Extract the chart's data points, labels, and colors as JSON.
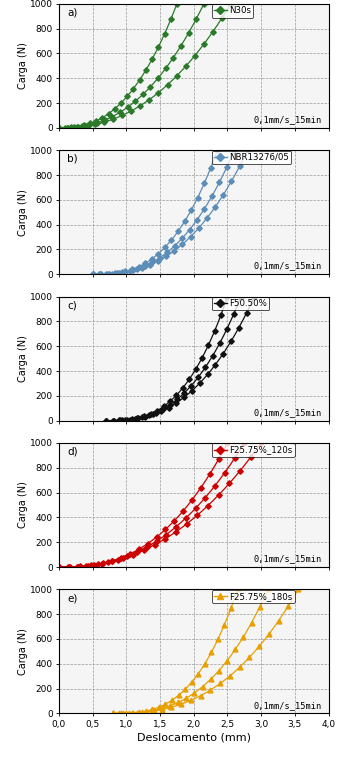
{
  "subplots": [
    {
      "label": "a)",
      "legend_label": "N30s",
      "color": "#2a7a2a",
      "marker": "D",
      "annotation": "0,1mm/s_15min",
      "curves": [
        {
          "x_start": 0.0,
          "x_end": 1.75,
          "coeff": 2.5
        },
        {
          "x_start": 0.0,
          "x_end": 2.15,
          "coeff": 2.4
        },
        {
          "x_start": 0.0,
          "x_end": 2.55,
          "coeff": 2.3
        }
      ]
    },
    {
      "label": "b)",
      "legend_label": "NBR13276/05",
      "color": "#5b8db8",
      "marker": "D",
      "annotation": "0,1mm/s_15min",
      "curves": [
        {
          "x_start": 0.5,
          "x_end": 2.35,
          "coeff": 2.8
        },
        {
          "x_start": 0.5,
          "x_end": 2.6,
          "coeff": 2.7
        },
        {
          "x_start": 0.5,
          "x_end": 2.8,
          "coeff": 2.6
        }
      ]
    },
    {
      "label": "c)",
      "legend_label": "F50.50%",
      "color": "#111111",
      "marker": "D",
      "annotation": "0,1mm/s_15min",
      "curves": [
        {
          "x_start": 0.7,
          "x_end": 2.5,
          "coeff": 2.9
        },
        {
          "x_start": 0.7,
          "x_end": 2.7,
          "coeff": 2.75
        },
        {
          "x_start": 0.7,
          "x_end": 2.9,
          "coeff": 2.6
        }
      ]
    },
    {
      "label": "d)",
      "legend_label": "F25.75%_120s",
      "color": "#cc0000",
      "marker": "D",
      "annotation": "0,1mm/s_15min",
      "curves": [
        {
          "x_start": 0.0,
          "x_end": 2.5,
          "coeff": 2.6
        },
        {
          "x_start": 0.0,
          "x_end": 2.75,
          "coeff": 2.45
        },
        {
          "x_start": 0.0,
          "x_end": 3.0,
          "coeff": 2.3
        }
      ]
    },
    {
      "label": "e)",
      "legend_label": "F25.75%_180s",
      "color": "#e8a000",
      "marker": "^",
      "annotation": "0,1mm/s_15min",
      "curves": [
        {
          "x_start": 0.8,
          "x_end": 2.65,
          "coeff": 3.0
        },
        {
          "x_start": 0.8,
          "x_end": 3.1,
          "coeff": 2.8
        },
        {
          "x_start": 0.8,
          "x_end": 3.55,
          "coeff": 2.6
        }
      ]
    }
  ],
  "ylabel": "Carga (N)",
  "xlabel": "Deslocamento (mm)",
  "ylim": [
    0,
    1000
  ],
  "xlim": [
    0.0,
    4.0
  ],
  "yticks": [
    0,
    200,
    400,
    600,
    800,
    1000
  ],
  "xticks": [
    0.0,
    0.5,
    1.0,
    1.5,
    2.0,
    2.5,
    3.0,
    3.5,
    4.0
  ],
  "bg_color": "#f5f5f5"
}
